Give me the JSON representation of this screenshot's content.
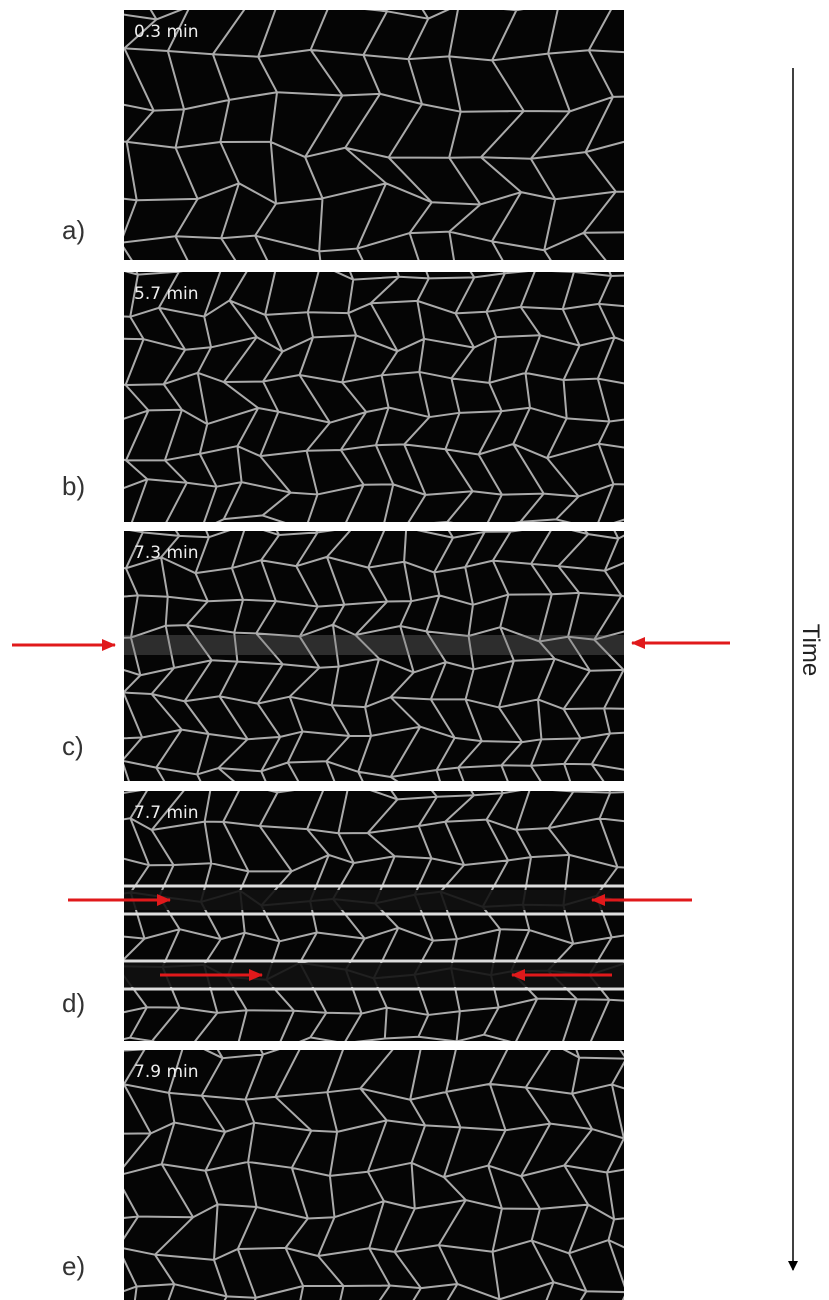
{
  "panels": [
    {
      "label": "a)",
      "time": "0.3 min"
    },
    {
      "label": "b)",
      "time": "5.7 min"
    },
    {
      "label": "c)",
      "time": "7.3 min"
    },
    {
      "label": "d)",
      "time": "7.7 min"
    },
    {
      "label": "e)",
      "time": "7.9 min"
    }
  ],
  "axis_label": "Time"
}
